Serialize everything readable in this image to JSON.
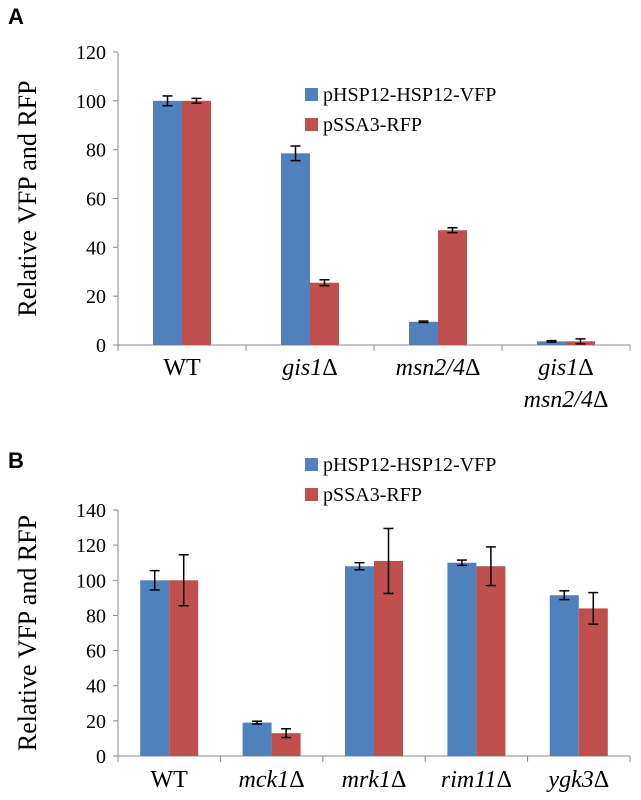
{
  "chart_data": [
    {
      "panel": "A",
      "type": "bar",
      "ylabel": "Relative VFP and RFP",
      "ylim": [
        0,
        120
      ],
      "yticks": [
        0,
        20,
        40,
        60,
        80,
        100,
        120
      ],
      "categories": [
        {
          "parts": [
            {
              "t": "WT",
              "i": false
            }
          ],
          "line2": ""
        },
        {
          "parts": [
            {
              "t": "gis1",
              "i": true
            },
            {
              "t": "Δ",
              "i": false
            }
          ],
          "line2": ""
        },
        {
          "parts": [
            {
              "t": "msn2/4",
              "i": true
            },
            {
              "t": "Δ",
              "i": false
            }
          ],
          "line2": ""
        },
        {
          "parts": [
            {
              "t": "gis1",
              "i": true
            },
            {
              "t": "Δ",
              "i": false
            }
          ],
          "line2": [
            {
              "t": "msn2/4",
              "i": true
            },
            {
              "t": "Δ",
              "i": false
            }
          ]
        }
      ],
      "series": [
        {
          "name": "pHSP12-HSP12-VFP",
          "color": "#4f81bd",
          "values": [
            100,
            78.5,
            9.5,
            1.5
          ],
          "errors": [
            2,
            3,
            0.3,
            0.3
          ]
        },
        {
          "name": "pSSA3-RFP",
          "color": "#c0504d",
          "values": [
            100,
            25.5,
            47,
            1.5
          ],
          "errors": [
            1,
            1.2,
            1,
            1
          ]
        }
      ],
      "legend_position": "top-right"
    },
    {
      "panel": "B",
      "type": "bar",
      "ylabel": "Relative VFP and RFP",
      "ylim": [
        0,
        140
      ],
      "yticks": [
        0,
        20,
        40,
        60,
        80,
        100,
        120,
        140
      ],
      "categories": [
        {
          "parts": [
            {
              "t": "WT",
              "i": false
            }
          ],
          "line2": ""
        },
        {
          "parts": [
            {
              "t": "mck1",
              "i": true
            },
            {
              "t": "Δ",
              "i": false
            }
          ],
          "line2": ""
        },
        {
          "parts": [
            {
              "t": "mrk1",
              "i": true
            },
            {
              "t": "Δ",
              "i": false
            }
          ],
          "line2": ""
        },
        {
          "parts": [
            {
              "t": "rim11",
              "i": true
            },
            {
              "t": "Δ",
              "i": false
            }
          ],
          "line2": ""
        },
        {
          "parts": [
            {
              "t": "ygk3",
              "i": true
            },
            {
              "t": "Δ",
              "i": false
            }
          ],
          "line2": ""
        }
      ],
      "series": [
        {
          "name": "pHSP12-HSP12-VFP",
          "color": "#4f81bd",
          "values": [
            100,
            19,
            108,
            110,
            91.5
          ],
          "errors": [
            5.5,
            0.8,
            2,
            1.5,
            2.5
          ]
        },
        {
          "name": "pSSA3-RFP",
          "color": "#c0504d",
          "values": [
            100,
            13,
            111,
            108,
            84
          ],
          "errors": [
            14.5,
            2.5,
            18.5,
            11,
            9
          ]
        }
      ],
      "legend_position": "top-right"
    }
  ]
}
